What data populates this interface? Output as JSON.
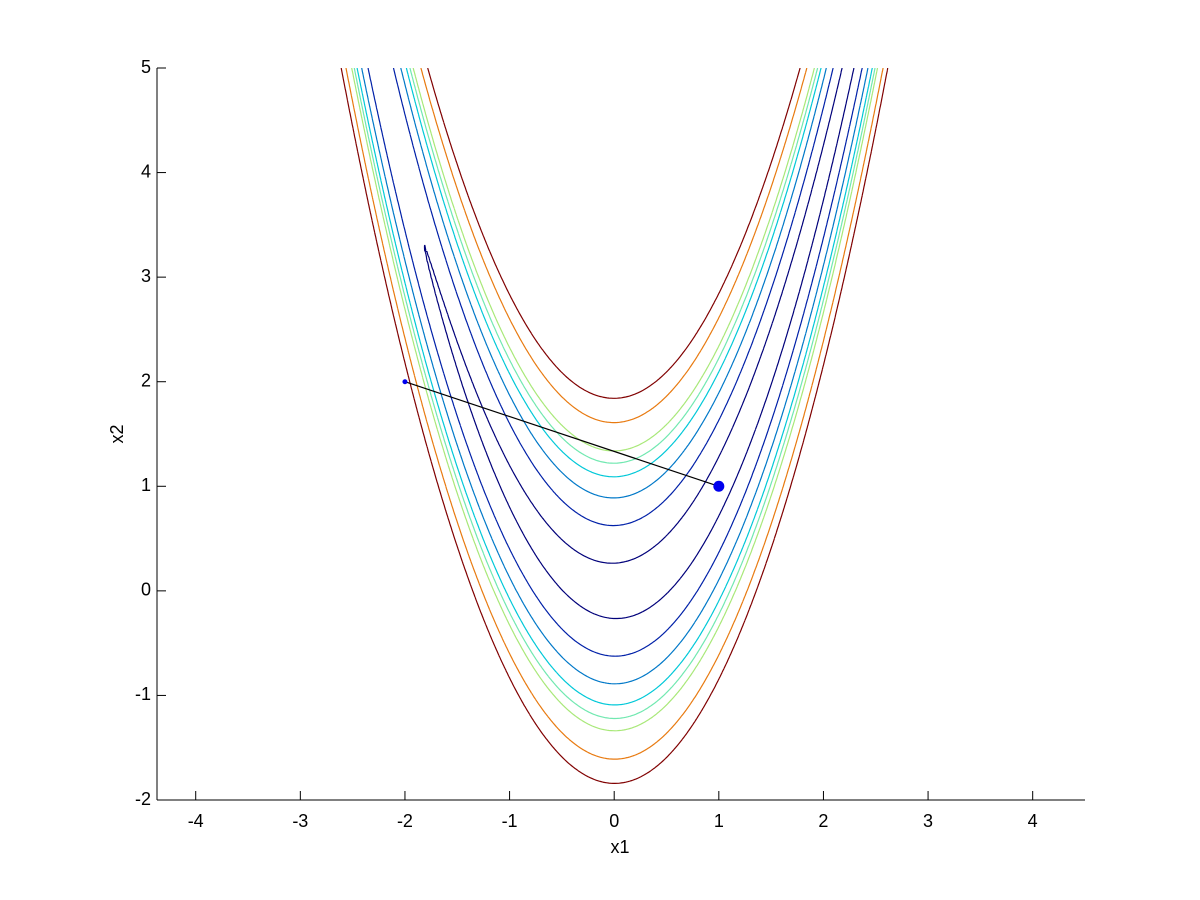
{
  "chart_data": {
    "type": "contour",
    "xlabel": "x1",
    "ylabel": "x2",
    "xlim": [
      -4.37,
      4.5
    ],
    "ylim": [
      -2,
      5
    ],
    "xticks": [
      -4,
      -3,
      -2,
      -1,
      0,
      1,
      2,
      3,
      4
    ],
    "yticks": [
      -2,
      -1,
      0,
      1,
      2,
      3,
      4,
      5
    ],
    "surface": {
      "a": 1,
      "b": 100
    },
    "levels": [
      8,
      40,
      80,
      120,
      150,
      180,
      260,
      340
    ],
    "level_colors": [
      "#00007a",
      "#0020a8",
      "#0078c8",
      "#00c8d8",
      "#70e8b0",
      "#a8e878",
      "#e87a10",
      "#800000"
    ],
    "path": {
      "x": [
        -2,
        1
      ],
      "y": [
        2,
        1
      ],
      "color": "#0000ee",
      "line_color": "#000000"
    }
  }
}
